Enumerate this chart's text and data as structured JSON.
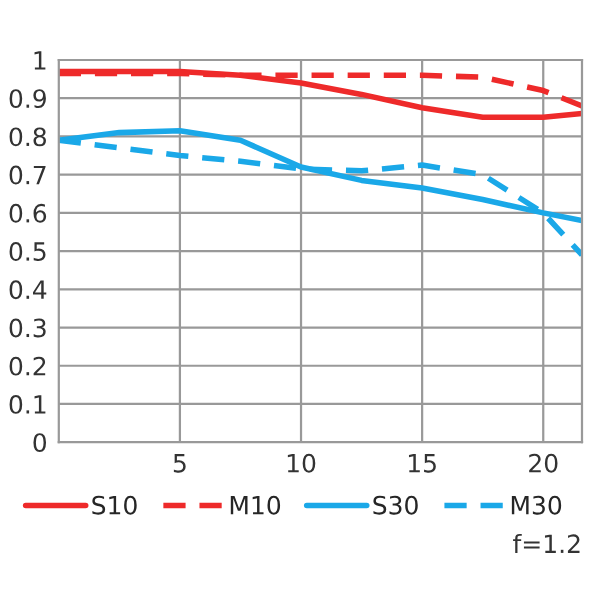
{
  "chart_data": {
    "type": "line",
    "x": [
      0,
      2.5,
      5,
      7.5,
      10,
      12.5,
      15,
      17.5,
      20,
      21.6
    ],
    "series": [
      {
        "name": "S10",
        "color": "#ee2a2a",
        "line_style": "solid",
        "values": [
          0.97,
          0.97,
          0.97,
          0.96,
          0.94,
          0.91,
          0.875,
          0.85,
          0.85,
          0.86
        ]
      },
      {
        "name": "M10",
        "color": "#ee2a2a",
        "line_style": "dashed",
        "values": [
          0.965,
          0.965,
          0.965,
          0.96,
          0.96,
          0.96,
          0.96,
          0.955,
          0.92,
          0.88
        ]
      },
      {
        "name": "S30",
        "color": "#1aa8e8",
        "line_style": "solid",
        "values": [
          0.79,
          0.81,
          0.815,
          0.79,
          0.72,
          0.685,
          0.665,
          0.635,
          0.6,
          0.58
        ]
      },
      {
        "name": "M30",
        "color": "#1aa8e8",
        "line_style": "dashed",
        "values": [
          0.79,
          0.77,
          0.75,
          0.735,
          0.715,
          0.71,
          0.725,
          0.7,
          0.6,
          0.49
        ]
      }
    ],
    "xlim": [
      0,
      21.6
    ],
    "xticks": [
      5,
      10,
      15,
      20
    ],
    "ylim": [
      0,
      1
    ],
    "yticks": [
      0,
      0.1,
      0.2,
      0.3,
      0.4,
      0.5,
      0.6,
      0.7,
      0.8,
      0.9,
      1
    ],
    "grid": true,
    "legend": "bottom",
    "marker": "none",
    "annotations": [
      "f=1.2"
    ]
  }
}
